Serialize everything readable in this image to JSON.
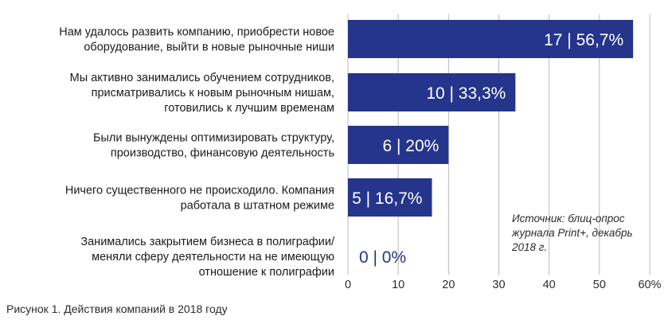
{
  "chart_data": {
    "type": "bar",
    "orientation": "horizontal",
    "categories": [
      [
        "Нам удалось развить компанию, приобрести новое",
        "оборудование, выйти в новые рыночные ниши"
      ],
      [
        "Мы активно занимались обучением сотрудников,",
        "присматривались к новым рыночным нишам,",
        "готовились к лучшим временам"
      ],
      [
        "Были вынуждены оптимизировать структуру,",
        "производство, финансовую деятельность"
      ],
      [
        "Ничего существенного не происходило. Компания",
        "работала в штатном режиме"
      ],
      [
        "Занимались закрытием бизнеса в полиграфии/",
        "меняли сферу деятельности на не имеющую",
        "отношение к полиграфии"
      ]
    ],
    "values": [
      56.7,
      33.3,
      20,
      16.7,
      0
    ],
    "counts": [
      17,
      10,
      6,
      5,
      0
    ],
    "data_labels": [
      "17  |  56,7%",
      "10  |  33,3%",
      "6  |  20%",
      "5  |  16,7%",
      "0  |  0%"
    ],
    "xlim": [
      0,
      60
    ],
    "x_ticks": [
      "0",
      "10",
      "20",
      "30",
      "40",
      "50",
      "60%"
    ],
    "grid": true,
    "bar_color": "#25358c",
    "grid_color": "#b8b8b8",
    "source_note": [
      "Источник: блиц-опрос",
      "журнала Print+, декабрь",
      "2018 г."
    ]
  },
  "caption": "Рисунок 1. Действия компаний в 2018 году"
}
